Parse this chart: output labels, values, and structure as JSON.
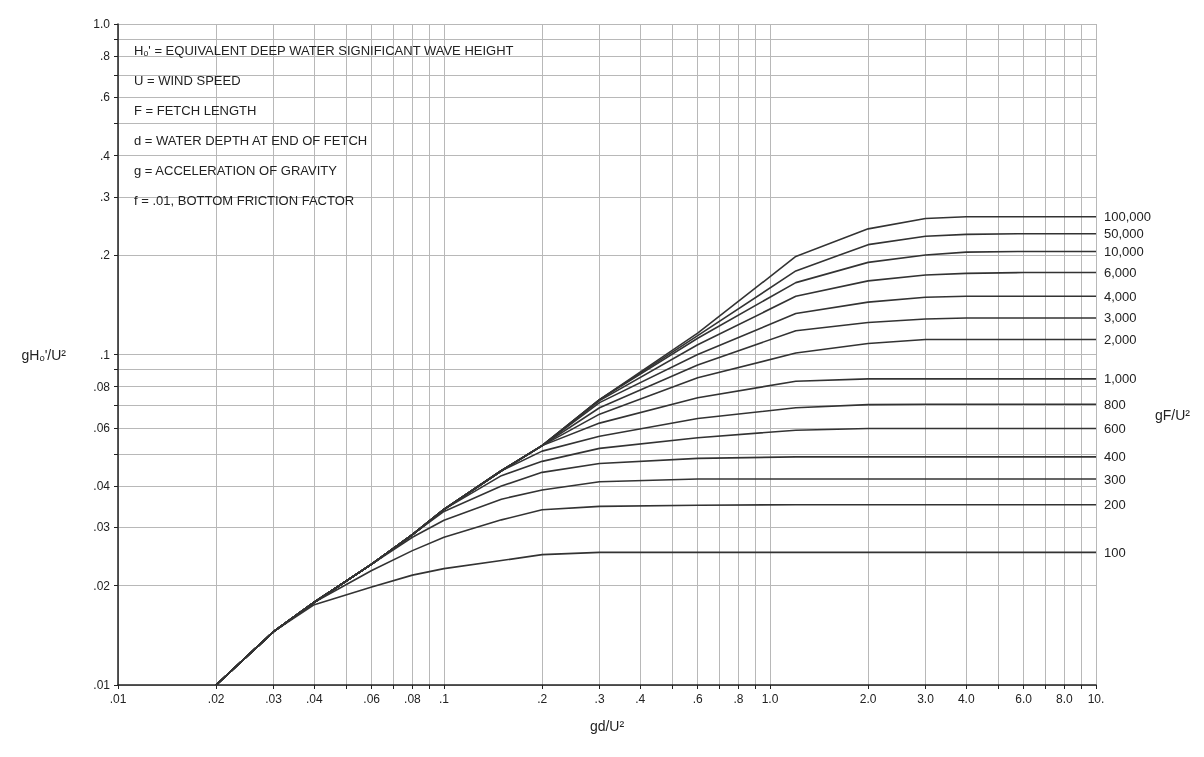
{
  "chart_data": {
    "type": "line",
    "xlabel": "gd/U²",
    "ylabel": "gHₒ'/U²",
    "legend_title": "gF/U²",
    "log": "xy",
    "grid": true,
    "annotations": [
      "Hₒ' = EQUIVALENT DEEP WATER SIGNIFICANT WAVE HEIGHT",
      "U = WIND SPEED",
      "F = FETCH LENGTH",
      "d = WATER DEPTH AT END OF FETCH",
      "g = ACCELERATION OF GRAVITY",
      "f = .01, BOTTOM FRICTION FACTOR"
    ],
    "xlim": [
      0.01,
      10
    ],
    "ylim": [
      0.01,
      1
    ],
    "xticks": [
      {
        "value": 0.01,
        "label": ".01"
      },
      {
        "value": 0.02,
        "label": ".02"
      },
      {
        "value": 0.03,
        "label": ".03"
      },
      {
        "value": 0.04,
        "label": ".04"
      },
      {
        "value": 0.05,
        "label": null
      },
      {
        "value": 0.06,
        "label": ".06"
      },
      {
        "value": 0.07,
        "label": null
      },
      {
        "value": 0.08,
        "label": ".08"
      },
      {
        "value": 0.09,
        "label": null
      },
      {
        "value": 0.1,
        "label": ".1"
      },
      {
        "value": 0.2,
        "label": ".2"
      },
      {
        "value": 0.3,
        "label": ".3"
      },
      {
        "value": 0.4,
        "label": ".4"
      },
      {
        "value": 0.5,
        "label": null
      },
      {
        "value": 0.6,
        "label": ".6"
      },
      {
        "value": 0.7,
        "label": null
      },
      {
        "value": 0.8,
        "label": ".8"
      },
      {
        "value": 0.9,
        "label": null
      },
      {
        "value": 1,
        "label": "1.0"
      },
      {
        "value": 2,
        "label": "2.0"
      },
      {
        "value": 3,
        "label": "3.0"
      },
      {
        "value": 4,
        "label": "4.0"
      },
      {
        "value": 5,
        "label": null
      },
      {
        "value": 6,
        "label": "6.0"
      },
      {
        "value": 7,
        "label": null
      },
      {
        "value": 8,
        "label": "8.0"
      },
      {
        "value": 9,
        "label": null
      },
      {
        "value": 10,
        "label": "10."
      }
    ],
    "yticks": [
      {
        "value": 0.01,
        "label": ".01"
      },
      {
        "value": 0.02,
        "label": ".02"
      },
      {
        "value": 0.03,
        "label": ".03"
      },
      {
        "value": 0.04,
        "label": ".04"
      },
      {
        "value": 0.05,
        "label": null
      },
      {
        "value": 0.06,
        "label": ".06"
      },
      {
        "value": 0.07,
        "label": null
      },
      {
        "value": 0.08,
        "label": ".08"
      },
      {
        "value": 0.09,
        "label": null
      },
      {
        "value": 0.1,
        "label": ".1"
      },
      {
        "value": 0.2,
        "label": ".2"
      },
      {
        "value": 0.3,
        "label": ".3"
      },
      {
        "value": 0.4,
        "label": ".4"
      },
      {
        "value": 0.5,
        "label": null
      },
      {
        "value": 0.6,
        "label": ".6"
      },
      {
        "value": 0.7,
        "label": null
      },
      {
        "value": 0.8,
        "label": ".8"
      },
      {
        "value": 0.9,
        "label": null
      },
      {
        "value": 1,
        "label": "1.0"
      }
    ],
    "series": [
      {
        "name": "100,000",
        "color": "#333333",
        "x": [
          0.02,
          0.03,
          0.04,
          0.06,
          0.08,
          0.1,
          0.15,
          0.2,
          0.3,
          0.6,
          1.2,
          2,
          3,
          4,
          6,
          10
        ],
        "values": [
          0.01,
          0.0145,
          0.0178,
          0.0232,
          0.0285,
          0.034,
          0.0445,
          0.053,
          0.073,
          0.116,
          0.198,
          0.24,
          0.258,
          0.261,
          0.261,
          0.261
        ]
      },
      {
        "name": "50,000",
        "color": "#333333",
        "x": [
          0.02,
          0.03,
          0.04,
          0.06,
          0.08,
          0.1,
          0.15,
          0.2,
          0.3,
          0.6,
          1.2,
          2,
          3,
          4,
          6,
          10
        ],
        "values": [
          0.01,
          0.0145,
          0.0178,
          0.0232,
          0.0285,
          0.034,
          0.0445,
          0.053,
          0.073,
          0.114,
          0.179,
          0.215,
          0.228,
          0.231,
          0.232,
          0.232
        ]
      },
      {
        "name": "10,000",
        "color": "#333333",
        "x": [
          0.02,
          0.03,
          0.04,
          0.06,
          0.08,
          0.1,
          0.15,
          0.2,
          0.3,
          0.6,
          1.2,
          2,
          3,
          4,
          6,
          10
        ],
        "values": [
          0.01,
          0.0145,
          0.0178,
          0.0232,
          0.0285,
          0.034,
          0.0445,
          0.053,
          0.073,
          0.112,
          0.165,
          0.19,
          0.2,
          0.204,
          0.205,
          0.205
        ]
      },
      {
        "name": "6,000",
        "color": "#333333",
        "x": [
          0.02,
          0.03,
          0.04,
          0.06,
          0.08,
          0.1,
          0.15,
          0.2,
          0.3,
          0.6,
          1.2,
          2,
          3,
          4,
          6,
          10
        ],
        "values": [
          0.01,
          0.0145,
          0.0178,
          0.0232,
          0.0285,
          0.034,
          0.0445,
          0.053,
          0.0725,
          0.107,
          0.15,
          0.167,
          0.174,
          0.176,
          0.177,
          0.177
        ]
      },
      {
        "name": "4,000",
        "color": "#333333",
        "x": [
          0.02,
          0.03,
          0.04,
          0.06,
          0.08,
          0.1,
          0.15,
          0.2,
          0.3,
          0.6,
          1.2,
          2,
          3,
          4,
          6,
          10
        ],
        "values": [
          0.01,
          0.0145,
          0.0178,
          0.0232,
          0.0285,
          0.034,
          0.0445,
          0.053,
          0.0715,
          0.1,
          0.133,
          0.144,
          0.149,
          0.15,
          0.15,
          0.15
        ]
      },
      {
        "name": "3,000",
        "color": "#333333",
        "x": [
          0.02,
          0.03,
          0.04,
          0.06,
          0.08,
          0.1,
          0.15,
          0.2,
          0.3,
          0.6,
          1.2,
          2,
          3,
          4,
          6,
          10
        ],
        "values": [
          0.01,
          0.0145,
          0.0178,
          0.0232,
          0.0285,
          0.034,
          0.0445,
          0.053,
          0.069,
          0.093,
          0.118,
          0.125,
          0.128,
          0.129,
          0.129,
          0.129
        ]
      },
      {
        "name": "2,000",
        "color": "#333333",
        "x": [
          0.02,
          0.03,
          0.04,
          0.06,
          0.08,
          0.1,
          0.15,
          0.2,
          0.3,
          0.6,
          1.2,
          2,
          3,
          4,
          6,
          10
        ],
        "values": [
          0.01,
          0.0145,
          0.0178,
          0.0232,
          0.0285,
          0.034,
          0.0445,
          0.053,
          0.066,
          0.085,
          0.101,
          0.108,
          0.111,
          0.111,
          0.111,
          0.111
        ]
      },
      {
        "name": "1,000",
        "color": "#333333",
        "x": [
          0.02,
          0.03,
          0.04,
          0.06,
          0.08,
          0.1,
          0.15,
          0.2,
          0.3,
          0.6,
          1.2,
          2,
          3,
          4,
          6,
          10
        ],
        "values": [
          0.01,
          0.0145,
          0.0178,
          0.0232,
          0.0285,
          0.034,
          0.0445,
          0.053,
          0.062,
          0.074,
          0.083,
          0.0844,
          0.0844,
          0.0844,
          0.0844,
          0.0844
        ]
      },
      {
        "name": "800",
        "color": "#333333",
        "x": [
          0.02,
          0.03,
          0.04,
          0.06,
          0.08,
          0.1,
          0.15,
          0.2,
          0.3,
          0.6,
          1.2,
          2,
          3,
          4,
          6,
          10
        ],
        "values": [
          0.01,
          0.0145,
          0.0178,
          0.0232,
          0.0285,
          0.034,
          0.0445,
          0.051,
          0.0566,
          0.064,
          0.069,
          0.0705,
          0.0707,
          0.0707,
          0.0707,
          0.0707
        ]
      },
      {
        "name": "600",
        "color": "#333333",
        "x": [
          0.02,
          0.03,
          0.04,
          0.06,
          0.08,
          0.1,
          0.15,
          0.2,
          0.3,
          0.6,
          1.2,
          2,
          3,
          4,
          6,
          10
        ],
        "values": [
          0.01,
          0.0145,
          0.0178,
          0.0232,
          0.0285,
          0.034,
          0.043,
          0.0475,
          0.052,
          0.056,
          0.059,
          0.0597,
          0.0597,
          0.0597,
          0.0597,
          0.0597
        ]
      },
      {
        "name": "400",
        "color": "#333333",
        "x": [
          0.02,
          0.03,
          0.04,
          0.06,
          0.08,
          0.1,
          0.15,
          0.2,
          0.3,
          0.6,
          1.2,
          2,
          3,
          4,
          6,
          10
        ],
        "values": [
          0.01,
          0.0145,
          0.0178,
          0.0232,
          0.0285,
          0.0335,
          0.04,
          0.044,
          0.0468,
          0.0485,
          0.049,
          0.049,
          0.049,
          0.049,
          0.049,
          0.049
        ]
      },
      {
        "name": "300",
        "color": "#333333",
        "x": [
          0.02,
          0.03,
          0.04,
          0.06,
          0.08,
          0.1,
          0.15,
          0.2,
          0.3,
          0.6,
          1.2,
          2,
          3,
          4,
          6,
          10
        ],
        "values": [
          0.01,
          0.0145,
          0.0178,
          0.0232,
          0.028,
          0.0315,
          0.0365,
          0.0389,
          0.0412,
          0.042,
          0.042,
          0.042,
          0.042,
          0.042,
          0.042,
          0.042
        ]
      },
      {
        "name": "200",
        "color": "#333333",
        "x": [
          0.02,
          0.03,
          0.04,
          0.06,
          0.08,
          0.1,
          0.15,
          0.2,
          0.3,
          0.6,
          1.2,
          2,
          3,
          4,
          6,
          10
        ],
        "values": [
          0.01,
          0.0145,
          0.0178,
          0.0222,
          0.0255,
          0.028,
          0.0316,
          0.0339,
          0.0347,
          0.035,
          0.0351,
          0.0351,
          0.0351,
          0.0351,
          0.0351,
          0.0351
        ]
      },
      {
        "name": "100",
        "color": "#333333",
        "x": [
          0.02,
          0.03,
          0.04,
          0.06,
          0.08,
          0.1,
          0.15,
          0.2,
          0.3,
          0.6,
          1.2,
          2,
          3,
          4,
          6,
          10
        ],
        "values": [
          0.01,
          0.0145,
          0.0175,
          0.0198,
          0.0215,
          0.0225,
          0.0238,
          0.0248,
          0.0252,
          0.0252,
          0.0252,
          0.0252,
          0.0252,
          0.0252,
          0.0252,
          0.0252
        ]
      }
    ]
  }
}
